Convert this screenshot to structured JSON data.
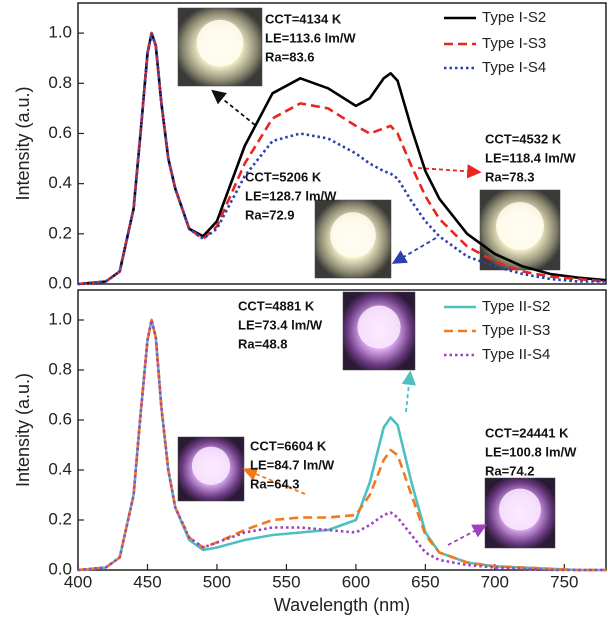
{
  "chart_data": [
    {
      "type": "line",
      "x": [
        400,
        420,
        430,
        440,
        445,
        450,
        453,
        456,
        460,
        465,
        470,
        480,
        490,
        500,
        520,
        540,
        560,
        580,
        600,
        610,
        620,
        625,
        630,
        640,
        650,
        660,
        680,
        700,
        720,
        740,
        760,
        780
      ],
      "series": [
        {
          "name": "Type I-S2",
          "color": "#000000",
          "style": "solid",
          "values": [
            0,
            0.01,
            0.05,
            0.3,
            0.6,
            0.92,
            1.0,
            0.95,
            0.72,
            0.5,
            0.38,
            0.22,
            0.19,
            0.25,
            0.55,
            0.76,
            0.82,
            0.78,
            0.71,
            0.74,
            0.82,
            0.84,
            0.81,
            0.62,
            0.45,
            0.34,
            0.2,
            0.12,
            0.07,
            0.04,
            0.025,
            0.015
          ]
        },
        {
          "name": "Type I-S3",
          "color": "#e8261f",
          "style": "dashed",
          "values": [
            0,
            0.01,
            0.05,
            0.3,
            0.6,
            0.92,
            1.0,
            0.95,
            0.72,
            0.5,
            0.38,
            0.22,
            0.18,
            0.23,
            0.48,
            0.66,
            0.72,
            0.7,
            0.63,
            0.6,
            0.62,
            0.63,
            0.6,
            0.47,
            0.35,
            0.26,
            0.15,
            0.09,
            0.05,
            0.03,
            0.02,
            0.01
          ]
        },
        {
          "name": "Type I-S4",
          "color": "#2a3fb0",
          "style": "dotted",
          "values": [
            0,
            0.01,
            0.05,
            0.3,
            0.6,
            0.92,
            1.0,
            0.95,
            0.72,
            0.5,
            0.38,
            0.22,
            0.18,
            0.22,
            0.43,
            0.57,
            0.6,
            0.58,
            0.52,
            0.48,
            0.45,
            0.44,
            0.42,
            0.33,
            0.25,
            0.19,
            0.11,
            0.07,
            0.04,
            0.02,
            0.01,
            0.01
          ]
        }
      ],
      "xlim": [
        400,
        780
      ],
      "ylim": [
        0,
        1.12
      ],
      "yticks": [
        {
          "value": 0,
          "label": "0.0"
        },
        {
          "value": 0.2,
          "label": "0.2"
        },
        {
          "value": 0.4,
          "label": "0.4"
        },
        {
          "value": 0.6,
          "label": "0.6"
        },
        {
          "value": 0.8,
          "label": "0.8"
        },
        {
          "value": 1,
          "label": "1.0"
        }
      ],
      "y_label": "Intensity (a.u.)",
      "annotations": [
        {
          "lines": [
            "CCT=4134 K",
            "LE=113.6 lm/W",
            "Ra=83.6"
          ]
        },
        {
          "lines": [
            "CCT=4532 K",
            "LE=118.4 lm/W",
            "Ra=78.3"
          ]
        },
        {
          "lines": [
            "CCT=5206 K",
            "LE=128.7 lm/W",
            "Ra=72.9"
          ]
        }
      ]
    },
    {
      "type": "line",
      "x": [
        400,
        420,
        430,
        440,
        445,
        450,
        453,
        456,
        460,
        465,
        470,
        480,
        490,
        500,
        520,
        540,
        560,
        580,
        600,
        610,
        620,
        625,
        630,
        640,
        650,
        660,
        680,
        700,
        720,
        740,
        760,
        780
      ],
      "series": [
        {
          "name": "Type II-S2",
          "color": "#4dc0c0",
          "style": "solid",
          "values": [
            0,
            0.01,
            0.05,
            0.3,
            0.62,
            0.92,
            1.0,
            0.93,
            0.65,
            0.4,
            0.25,
            0.12,
            0.08,
            0.09,
            0.12,
            0.14,
            0.15,
            0.16,
            0.2,
            0.35,
            0.57,
            0.61,
            0.58,
            0.35,
            0.15,
            0.07,
            0.03,
            0.015,
            0.01,
            0.005,
            0,
            0
          ]
        },
        {
          "name": "Type II-S3",
          "color": "#f07a1a",
          "style": "dashed",
          "values": [
            0,
            0.01,
            0.05,
            0.3,
            0.62,
            0.92,
            1.0,
            0.93,
            0.65,
            0.4,
            0.25,
            0.13,
            0.09,
            0.11,
            0.16,
            0.2,
            0.21,
            0.21,
            0.22,
            0.3,
            0.44,
            0.48,
            0.46,
            0.3,
            0.14,
            0.07,
            0.03,
            0.015,
            0.01,
            0.005,
            0,
            0
          ]
        },
        {
          "name": "Type II-S4",
          "color": "#a040c0",
          "style": "dotted",
          "values": [
            0,
            0.01,
            0.05,
            0.3,
            0.62,
            0.92,
            1.0,
            0.93,
            0.65,
            0.4,
            0.25,
            0.13,
            0.09,
            0.11,
            0.15,
            0.17,
            0.17,
            0.16,
            0.15,
            0.18,
            0.22,
            0.23,
            0.21,
            0.14,
            0.07,
            0.04,
            0.02,
            0.01,
            0.005,
            0,
            0,
            0
          ]
        }
      ],
      "xlim": [
        400,
        780
      ],
      "ylim": [
        0,
        1.12
      ],
      "xticks": [
        400,
        450,
        500,
        550,
        600,
        650,
        700,
        750
      ],
      "yticks": [
        {
          "value": 0,
          "label": "0.0"
        },
        {
          "value": 0.2,
          "label": "0.2"
        },
        {
          "value": 0.4,
          "label": "0.4"
        },
        {
          "value": 0.6,
          "label": "0.6"
        },
        {
          "value": 0.8,
          "label": "0.8"
        },
        {
          "value": 1,
          "label": "1.0"
        }
      ],
      "x_label": "Wavelength (nm)",
      "y_label": "Intensity (a.u.)",
      "annotations": [
        {
          "lines": [
            "CCT=4881 K",
            "LE=73.4 lm/W",
            "Ra=48.8"
          ]
        },
        {
          "lines": [
            "CCT=6604 K",
            "LE=84.7 lm/W",
            "Ra=64.3"
          ]
        },
        {
          "lines": [
            "CCT=24441 K",
            "LE=100.8 lm/W",
            "Ra=74.2"
          ]
        }
      ]
    }
  ]
}
